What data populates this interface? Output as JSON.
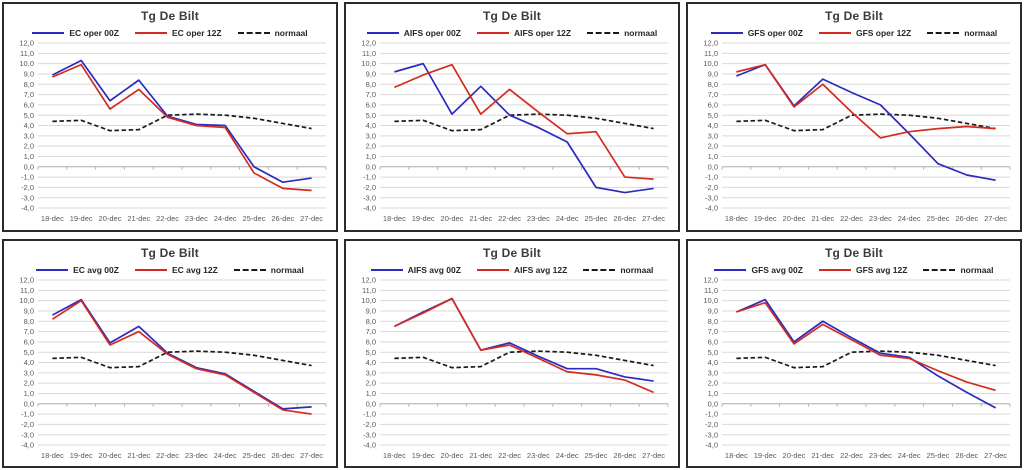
{
  "colors": {
    "series_00z_blue": "#2b2bbe",
    "series_12z_red": "#d32b20",
    "normaal_black": "#1a1a1a",
    "grid": "#d9d9d9",
    "axis": "#b3b3b3",
    "tick_label": "#595959",
    "title_text": "#3b3b3b",
    "panel_border": "#2b2b2b",
    "background": "#ffffff"
  },
  "chart_data": [
    {
      "type": "line",
      "title": "Tg De Bilt",
      "categories": [
        "18-dec",
        "19-dec",
        "20-dec",
        "21-dec",
        "22-dec",
        "23-dec",
        "24-dec",
        "25-dec",
        "26-dec",
        "27-dec"
      ],
      "xlabel": "",
      "ylabel": "",
      "ylim": [
        -4,
        12
      ],
      "ytick_step": 1,
      "ytick_decimal_separator": ",",
      "grid": true,
      "legend_position": "top",
      "series": [
        {
          "name": "EC oper 00Z",
          "color": "#2b2bbe",
          "style": "solid",
          "values": [
            8.9,
            10.3,
            6.4,
            8.4,
            4.9,
            4.1,
            4.0,
            0.0,
            -1.5,
            -1.1
          ]
        },
        {
          "name": "EC oper 12Z",
          "color": "#d32b20",
          "style": "solid",
          "values": [
            8.7,
            9.9,
            5.6,
            7.5,
            4.8,
            4.0,
            3.8,
            -0.6,
            -2.1,
            -2.3
          ]
        },
        {
          "name": "normaal",
          "color": "#1a1a1a",
          "style": "dashed",
          "values": [
            4.4,
            4.5,
            3.5,
            3.6,
            5.0,
            5.1,
            5.0,
            4.7,
            4.2,
            3.7
          ]
        }
      ]
    },
    {
      "type": "line",
      "title": "Tg De Bilt",
      "categories": [
        "18-dec",
        "19-dec",
        "20-dec",
        "21-dec",
        "22-dec",
        "23-dec",
        "24-dec",
        "25-dec",
        "26-dec",
        "27-dec"
      ],
      "xlabel": "",
      "ylabel": "",
      "ylim": [
        -4,
        12
      ],
      "ytick_step": 1,
      "ytick_decimal_separator": ",",
      "grid": true,
      "legend_position": "top",
      "series": [
        {
          "name": "AIFS oper 00Z",
          "color": "#2b2bbe",
          "style": "solid",
          "values": [
            9.2,
            10.0,
            5.1,
            7.8,
            5.0,
            3.8,
            2.4,
            -2.0,
            -2.5,
            -2.1
          ]
        },
        {
          "name": "AIFS oper 12Z",
          "color": "#d32b20",
          "style": "solid",
          "values": [
            7.7,
            8.9,
            9.9,
            5.1,
            7.5,
            5.3,
            3.2,
            3.4,
            -1.0,
            -1.2
          ]
        },
        {
          "name": "normaal",
          "color": "#1a1a1a",
          "style": "dashed",
          "values": [
            4.4,
            4.5,
            3.5,
            3.6,
            5.0,
            5.1,
            5.0,
            4.7,
            4.2,
            3.7
          ]
        }
      ]
    },
    {
      "type": "line",
      "title": "Tg De Bilt",
      "categories": [
        "18-dec",
        "19-dec",
        "20-dec",
        "21-dec",
        "22-dec",
        "23-dec",
        "24-dec",
        "25-dec",
        "26-dec",
        "27-dec"
      ],
      "xlabel": "",
      "ylabel": "",
      "ylim": [
        -4,
        12
      ],
      "ytick_step": 1,
      "ytick_decimal_separator": ",",
      "grid": true,
      "legend_position": "top",
      "series": [
        {
          "name": "GFS oper 00Z",
          "color": "#2b2bbe",
          "style": "solid",
          "values": [
            8.8,
            9.9,
            5.9,
            8.5,
            7.2,
            6.0,
            3.2,
            0.3,
            -0.8,
            -1.3
          ]
        },
        {
          "name": "GFS oper 12Z",
          "color": "#d32b20",
          "style": "solid",
          "values": [
            9.2,
            9.9,
            5.8,
            8.0,
            5.3,
            2.8,
            3.4,
            3.7,
            3.9,
            3.7
          ]
        },
        {
          "name": "normaal",
          "color": "#1a1a1a",
          "style": "dashed",
          "values": [
            4.4,
            4.5,
            3.5,
            3.6,
            5.0,
            5.1,
            5.0,
            4.7,
            4.2,
            3.7
          ]
        }
      ]
    },
    {
      "type": "line",
      "title": "Tg De Bilt",
      "categories": [
        "18-dec",
        "19-dec",
        "20-dec",
        "21-dec",
        "22-dec",
        "23-dec",
        "24-dec",
        "25-dec",
        "26-dec",
        "27-dec"
      ],
      "xlabel": "",
      "ylabel": "",
      "ylim": [
        -4,
        12
      ],
      "ytick_step": 1,
      "ytick_decimal_separator": ",",
      "grid": true,
      "legend_position": "top",
      "series": [
        {
          "name": "EC avg 00Z",
          "color": "#2b2bbe",
          "style": "solid",
          "values": [
            8.6,
            10.1,
            5.9,
            7.5,
            4.9,
            3.5,
            2.9,
            1.2,
            -0.5,
            -0.3
          ]
        },
        {
          "name": "EC avg 12Z",
          "color": "#d32b20",
          "style": "solid",
          "values": [
            8.2,
            10.0,
            5.7,
            7.0,
            4.8,
            3.4,
            2.8,
            1.1,
            -0.6,
            -1.0
          ]
        },
        {
          "name": "normaal",
          "color": "#1a1a1a",
          "style": "dashed",
          "values": [
            4.4,
            4.5,
            3.5,
            3.6,
            5.0,
            5.1,
            5.0,
            4.7,
            4.2,
            3.7
          ]
        }
      ]
    },
    {
      "type": "line",
      "title": "Tg De Bilt",
      "categories": [
        "18-dec",
        "19-dec",
        "20-dec",
        "21-dec",
        "22-dec",
        "23-dec",
        "24-dec",
        "25-dec",
        "26-dec",
        "27-dec"
      ],
      "xlabel": "",
      "ylabel": "",
      "ylim": [
        -4,
        12
      ],
      "ytick_step": 1,
      "ytick_decimal_separator": ",",
      "grid": true,
      "legend_position": "top",
      "series": [
        {
          "name": "AIFS avg 00Z",
          "color": "#2b2bbe",
          "style": "solid",
          "values": [
            7.5,
            8.9,
            10.2,
            5.2,
            5.9,
            4.6,
            3.4,
            3.4,
            2.6,
            2.2
          ]
        },
        {
          "name": "AIFS avg 12Z",
          "color": "#d32b20",
          "style": "solid",
          "values": [
            7.5,
            8.8,
            10.2,
            5.2,
            5.7,
            4.4,
            3.1,
            2.8,
            2.3,
            1.1
          ]
        },
        {
          "name": "normaal",
          "color": "#1a1a1a",
          "style": "dashed",
          "values": [
            4.4,
            4.5,
            3.5,
            3.6,
            5.0,
            5.1,
            5.0,
            4.7,
            4.2,
            3.7
          ]
        }
      ]
    },
    {
      "type": "line",
      "title": "Tg De Bilt",
      "categories": [
        "18-dec",
        "19-dec",
        "20-dec",
        "21-dec",
        "22-dec",
        "23-dec",
        "24-dec",
        "25-dec",
        "26-dec",
        "27-dec"
      ],
      "xlabel": "",
      "ylabel": "",
      "ylim": [
        -4,
        12
      ],
      "ytick_step": 1,
      "ytick_decimal_separator": ",",
      "grid": true,
      "legend_position": "top",
      "series": [
        {
          "name": "GFS avg 00Z",
          "color": "#2b2bbe",
          "style": "solid",
          "values": [
            8.9,
            10.1,
            6.0,
            8.0,
            6.4,
            4.9,
            4.5,
            2.7,
            1.1,
            -0.4
          ]
        },
        {
          "name": "GFS avg 12Z",
          "color": "#d32b20",
          "style": "solid",
          "values": [
            8.9,
            9.8,
            5.8,
            7.7,
            6.2,
            4.7,
            4.4,
            3.2,
            2.1,
            1.3
          ]
        },
        {
          "name": "normaal",
          "color": "#1a1a1a",
          "style": "dashed",
          "values": [
            4.4,
            4.5,
            3.5,
            3.6,
            5.0,
            5.1,
            5.0,
            4.7,
            4.2,
            3.7
          ]
        }
      ]
    }
  ]
}
